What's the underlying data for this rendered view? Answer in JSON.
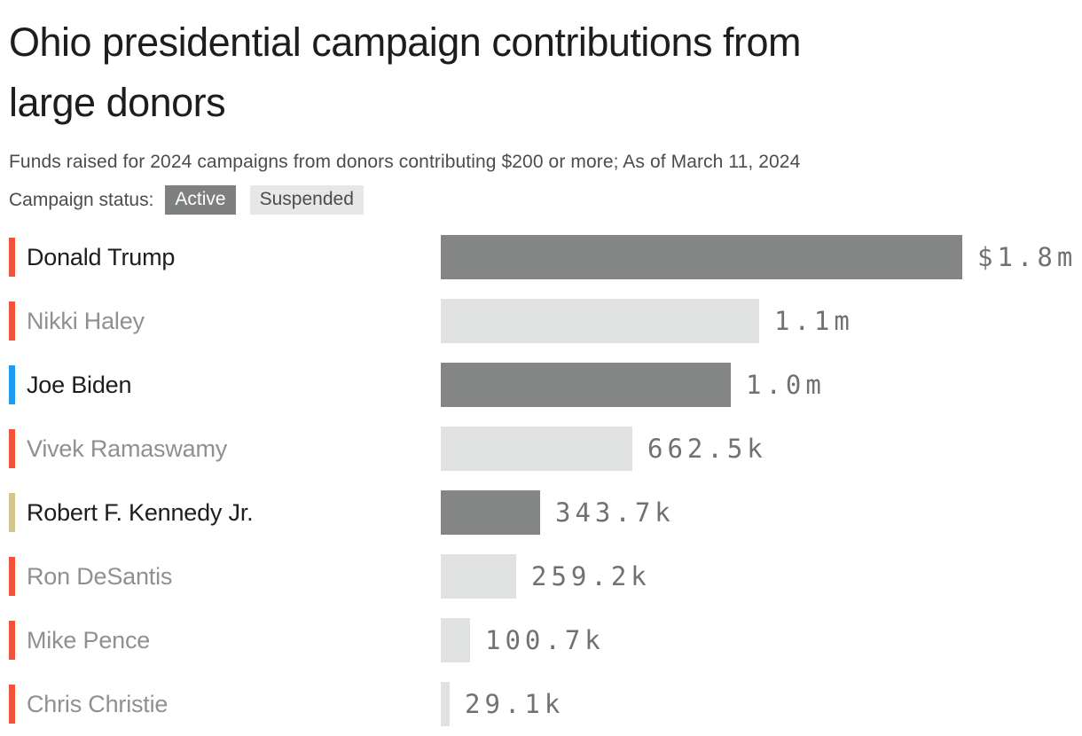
{
  "title": {
    "text": "Ohio presidential campaign contributions from large donors",
    "line1": "Ohio presidential campaign contributions from",
    "line2": "large donors"
  },
  "subtitle": "Funds raised for 2024 campaigns from donors contributing $200 or more; As of March 11, 2024",
  "legend": {
    "label": "Campaign status:",
    "items": [
      {
        "label": "Active",
        "status": "active",
        "bg": "#7d807f",
        "fg": "#ffffff"
      },
      {
        "label": "Suspended",
        "status": "suspended",
        "bg": "#e6e7e6",
        "fg": "#4a4d4c"
      }
    ]
  },
  "colors": {
    "title_text": "#1c1e1d",
    "subtitle_text": "#4a4d4c",
    "bar_active": "#838685",
    "bar_suspended": "#e0e2e1",
    "name_active": "#1c1e1d",
    "name_suspended": "#8e9190",
    "value_text": "#6f7271",
    "party_republican": "#ef5339",
    "party_democrat": "#1d9bf0",
    "party_independent": "#d4c48e"
  },
  "chart_data": {
    "type": "bar",
    "orientation": "horizontal",
    "title": "Ohio presidential campaign contributions from large donors",
    "subtitle": "Funds raised for 2024 campaigns from donors contributing $200 or more; As of March 11, 2024",
    "unit": "USD",
    "xlim": [
      0,
      1800000
    ],
    "grid": false,
    "legend_position": "top-left",
    "categories": [
      "Donald Trump",
      "Nikki Haley",
      "Joe Biden",
      "Vivek Ramaswamy",
      "Robert F. Kennedy Jr.",
      "Ron DeSantis",
      "Mike Pence",
      "Chris Christie"
    ],
    "values": [
      1800000,
      1100000,
      1000000,
      662500,
      343700,
      259200,
      100700,
      29100
    ],
    "bars": [
      {
        "name": "Donald Trump",
        "value": 1800000,
        "value_label": "$1.8m",
        "status": "active",
        "party": "republican"
      },
      {
        "name": "Nikki Haley",
        "value": 1100000,
        "value_label": "1.1m",
        "status": "suspended",
        "party": "republican"
      },
      {
        "name": "Joe Biden",
        "value": 1000000,
        "value_label": "1.0m",
        "status": "active",
        "party": "democrat"
      },
      {
        "name": "Vivek Ramaswamy",
        "value": 662500,
        "value_label": "662.5k",
        "status": "suspended",
        "party": "republican"
      },
      {
        "name": "Robert F. Kennedy Jr.",
        "value": 343700,
        "value_label": "343.7k",
        "status": "active",
        "party": "independent"
      },
      {
        "name": "Ron DeSantis",
        "value": 259200,
        "value_label": "259.2k",
        "status": "suspended",
        "party": "republican"
      },
      {
        "name": "Mike Pence",
        "value": 100700,
        "value_label": "100.7k",
        "status": "suspended",
        "party": "republican"
      },
      {
        "name": "Chris Christie",
        "value": 29100,
        "value_label": "29.1k",
        "status": "suspended",
        "party": "republican"
      }
    ]
  }
}
